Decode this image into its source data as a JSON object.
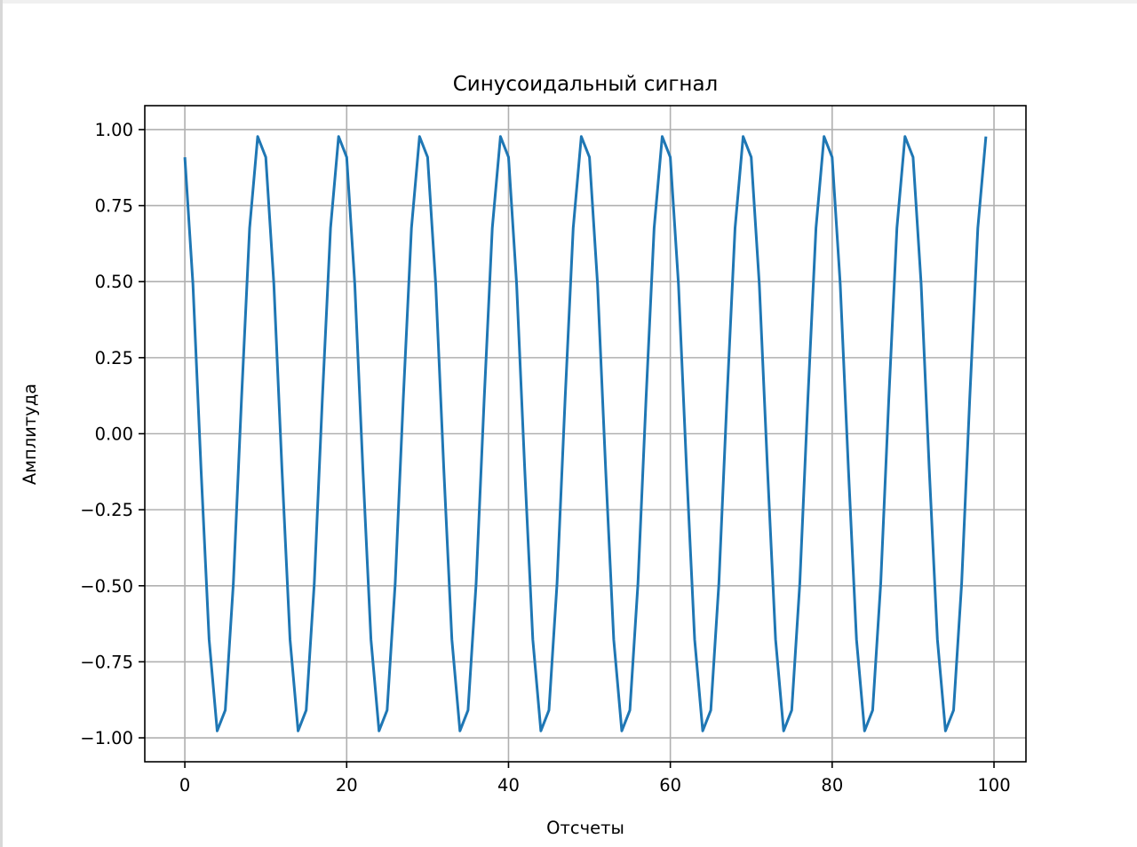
{
  "chart_data": {
    "type": "line",
    "title": "Синусоидальный сигнал",
    "xlabel": "Отсчеты",
    "ylabel": "Амплитуда",
    "xlim": [
      -4.95,
      103.95
    ],
    "ylim": [
      -1.0787,
      1.0787
    ],
    "xticks": [
      0,
      20,
      40,
      60,
      80,
      100
    ],
    "xtick_labels": [
      "0",
      "20",
      "40",
      "60",
      "80",
      "100"
    ],
    "yticks": [
      1.0,
      0.75,
      0.5,
      0.25,
      0.0,
      -0.25,
      -0.5,
      -0.75,
      -1.0
    ],
    "ytick_labels": [
      "1.00",
      "0.75",
      "0.50",
      "0.25",
      "0.00",
      "−0.25",
      "−0.50",
      "−0.75",
      "−1.00"
    ],
    "grid": true,
    "line_color": "#1f77b4",
    "grid_color": "#b0b0b0",
    "x_start": 0,
    "values": [
      0.909,
      0.492,
      -0.115,
      -0.676,
      -0.977,
      -0.909,
      -0.492,
      0.115,
      0.676,
      0.977,
      0.909,
      0.492,
      -0.115,
      -0.676,
      -0.977,
      -0.909,
      -0.492,
      0.115,
      0.676,
      0.977,
      0.909,
      0.492,
      -0.115,
      -0.676,
      -0.977,
      -0.909,
      -0.492,
      0.115,
      0.676,
      0.977,
      0.909,
      0.492,
      -0.115,
      -0.676,
      -0.977,
      -0.909,
      -0.492,
      0.115,
      0.676,
      0.977,
      0.909,
      0.492,
      -0.115,
      -0.676,
      -0.977,
      -0.909,
      -0.492,
      0.115,
      0.676,
      0.977,
      0.909,
      0.492,
      -0.115,
      -0.676,
      -0.977,
      -0.909,
      -0.492,
      0.115,
      0.676,
      0.977,
      0.909,
      0.492,
      -0.115,
      -0.676,
      -0.977,
      -0.909,
      -0.492,
      0.115,
      0.676,
      0.977,
      0.909,
      0.492,
      -0.115,
      -0.676,
      -0.977,
      -0.909,
      -0.492,
      0.115,
      0.676,
      0.977,
      0.909,
      0.492,
      -0.115,
      -0.676,
      -0.977,
      -0.909,
      -0.492,
      0.115,
      0.676,
      0.977,
      0.909,
      0.492,
      -0.115,
      -0.676,
      -0.977,
      -0.909,
      -0.492,
      0.115,
      0.676,
      0.977
    ]
  }
}
